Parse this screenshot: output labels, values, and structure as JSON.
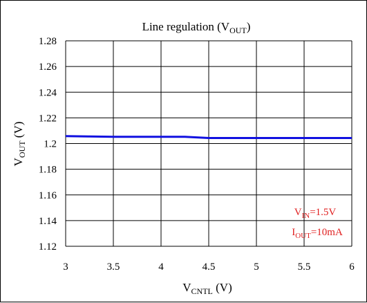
{
  "chart_data": {
    "type": "line",
    "title": {
      "main": "Line regulation (V",
      "sub": "OUT",
      "tail": ")"
    },
    "xlabel": {
      "main": "V",
      "sub": "CNTL",
      "tail": " (V)"
    },
    "ylabel": {
      "main": "V",
      "sub": "OUT",
      "tail": " (V)"
    },
    "xlim": [
      3,
      6
    ],
    "ylim": [
      1.12,
      1.28
    ],
    "x_ticks": [
      3,
      3.5,
      4,
      4.5,
      5,
      5.5,
      6
    ],
    "x_tick_labels": [
      "3",
      "3.5",
      "4",
      "4.5",
      "5",
      "5.5",
      "6"
    ],
    "y_ticks": [
      1.12,
      1.14,
      1.16,
      1.18,
      1.2,
      1.22,
      1.24,
      1.26,
      1.28
    ],
    "y_tick_labels": [
      "1.12",
      "1.14",
      "1.16",
      "1.18",
      "1.2",
      "1.22",
      "1.24",
      "1.26",
      "1.28"
    ],
    "grid": true,
    "series": [
      {
        "color": "#1010e0",
        "x": [
          3.0,
          3.25,
          3.5,
          3.75,
          4.0,
          4.25,
          4.5,
          4.75,
          5.0,
          5.25,
          5.5,
          5.75,
          6.0
        ],
        "y": [
          1.2058,
          1.2055,
          1.2052,
          1.2052,
          1.2052,
          1.2052,
          1.2043,
          1.2043,
          1.2043,
          1.2043,
          1.2043,
          1.2043,
          1.2043
        ]
      }
    ],
    "annotations": [
      {
        "main": "V",
        "sub": "IN",
        "tail": "=1.5V",
        "color": "#e02020"
      },
      {
        "main": "I",
        "sub": "OUT",
        "tail": "=10mA",
        "color": "#e02020"
      }
    ]
  }
}
